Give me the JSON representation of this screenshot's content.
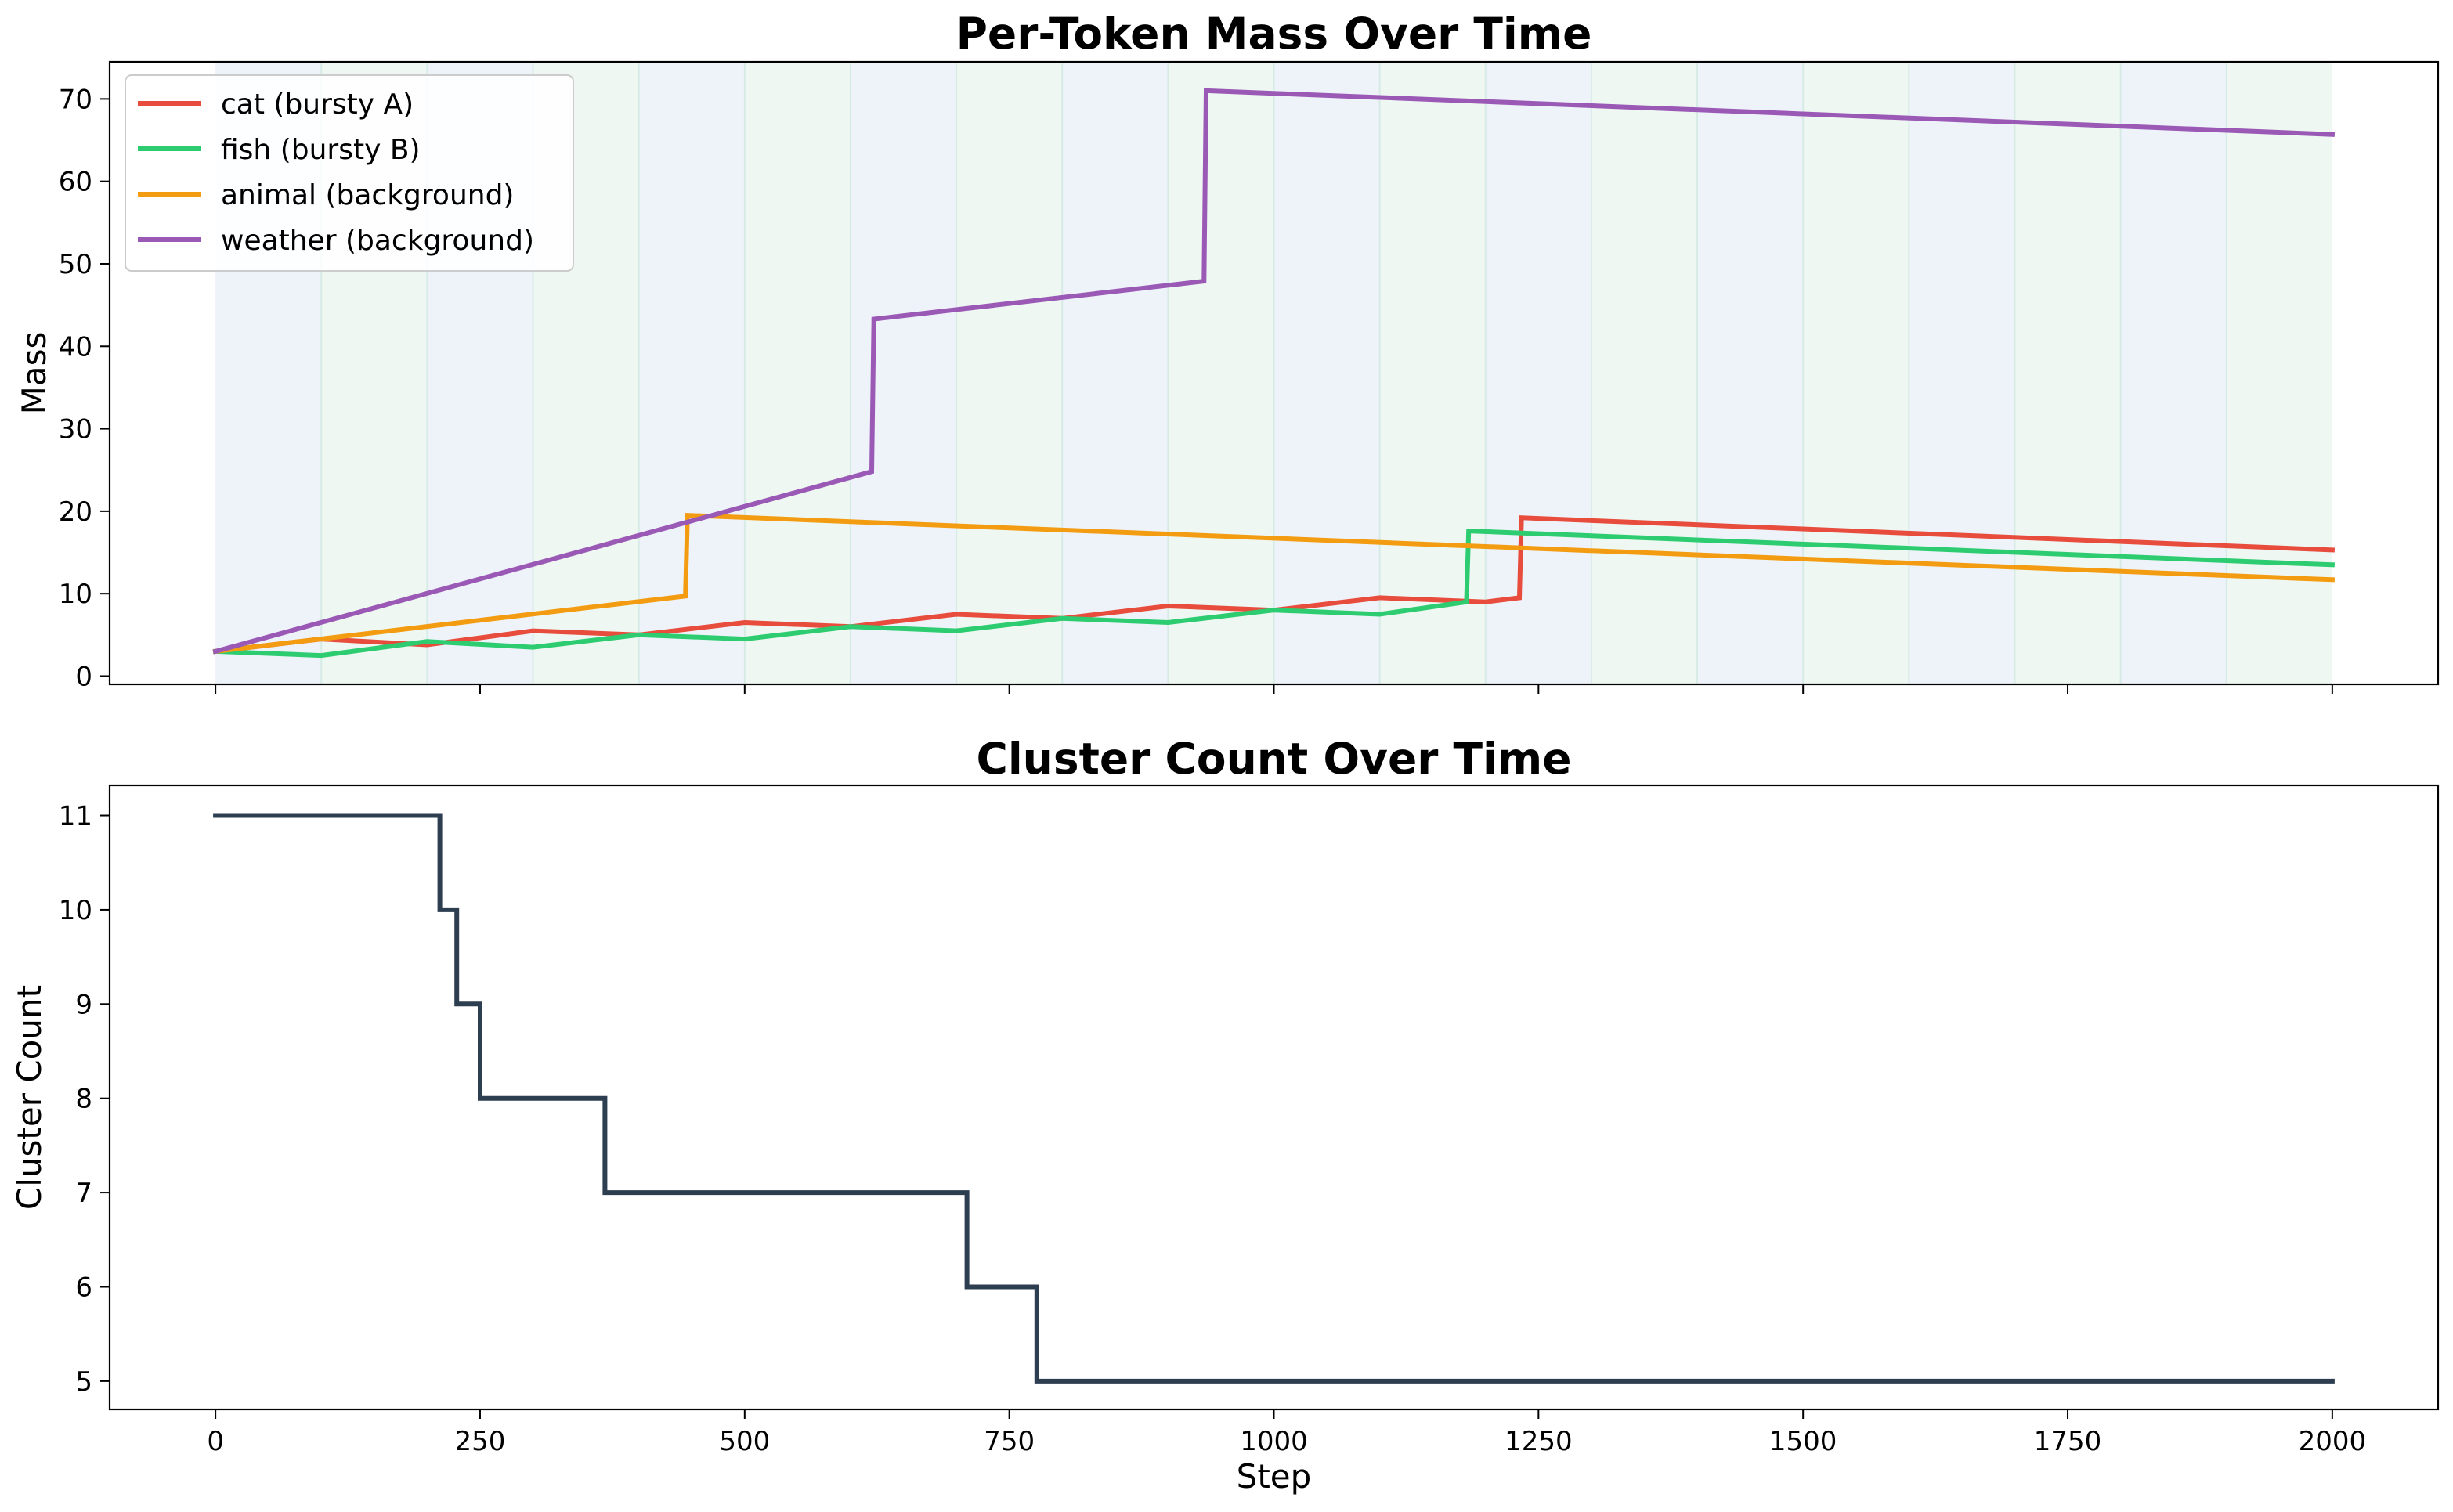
{
  "chart_data": [
    {
      "type": "line",
      "title": "Per-Token Mass Over Time",
      "xlabel": "",
      "ylabel": "Mass",
      "xlim": [
        -100,
        2100
      ],
      "ylim": [
        -1,
        74.5
      ],
      "yticks": [
        0,
        10,
        20,
        30,
        40,
        50,
        60,
        70
      ],
      "xticks": [
        0,
        250,
        500,
        750,
        1000,
        1250,
        1500,
        1750,
        2000
      ],
      "show_xtick_labels": false,
      "grid": false,
      "legend_position": "top-left",
      "background_bands": {
        "interval": 100,
        "from": 0,
        "to": 2000,
        "colors": [
          "#eef3fa",
          "#eef7f1"
        ],
        "divider_color": "#d7ebe6"
      },
      "series": [
        {
          "name": "cat (bursty A)",
          "color": "#e74c3c",
          "points": [
            [
              0,
              3
            ],
            [
              100,
              4.5
            ],
            [
              200,
              3.8
            ],
            [
              300,
              5.5
            ],
            [
              400,
              5
            ],
            [
              500,
              6.5
            ],
            [
              600,
              6
            ],
            [
              700,
              7.5
            ],
            [
              800,
              7
            ],
            [
              900,
              8.5
            ],
            [
              1000,
              8
            ],
            [
              1100,
              9.5
            ],
            [
              1200,
              9
            ],
            [
              1232,
              9.5
            ],
            [
              1234,
              19.2
            ],
            [
              2000,
              15.3
            ]
          ]
        },
        {
          "name": "fish (bursty B)",
          "color": "#2ecc71",
          "points": [
            [
              0,
              3
            ],
            [
              100,
              2.5
            ],
            [
              200,
              4.2
            ],
            [
              300,
              3.5
            ],
            [
              400,
              5
            ],
            [
              500,
              4.5
            ],
            [
              600,
              6
            ],
            [
              700,
              5.5
            ],
            [
              800,
              7
            ],
            [
              900,
              6.5
            ],
            [
              1000,
              8
            ],
            [
              1100,
              7.5
            ],
            [
              1182,
              9
            ],
            [
              1184,
              17.6
            ],
            [
              2000,
              13.5
            ]
          ]
        },
        {
          "name": "animal (background)",
          "color": "#f39c12",
          "points": [
            [
              0,
              3
            ],
            [
              444,
              9.7
            ],
            [
              446,
              19.5
            ],
            [
              2000,
              11.7
            ]
          ]
        },
        {
          "name": "weather (background)",
          "color": "#9b59b6",
          "points": [
            [
              0,
              3
            ],
            [
              620,
              24.8
            ],
            [
              622,
              43.3
            ],
            [
              934,
              47.9
            ],
            [
              936,
              71
            ],
            [
              2000,
              65.7
            ]
          ]
        }
      ]
    },
    {
      "type": "line",
      "title": "Cluster Count Over Time",
      "xlabel": "Step",
      "ylabel": "Cluster Count",
      "xlim": [
        -100,
        2100
      ],
      "ylim": [
        4.7,
        11.32
      ],
      "yticks": [
        5,
        6,
        7,
        8,
        9,
        10,
        11
      ],
      "xticks": [
        0,
        250,
        500,
        750,
        1000,
        1250,
        1500,
        1750,
        2000
      ],
      "show_xtick_labels": true,
      "grid": false,
      "series": [
        {
          "color": "#2c3e50",
          "step": true,
          "points": [
            [
              0,
              11
            ],
            [
              212,
              10
            ],
            [
              228,
              9
            ],
            [
              250,
              8
            ],
            [
              368,
              7
            ],
            [
              710,
              6
            ],
            [
              776,
              5
            ],
            [
              2000,
              5
            ]
          ]
        }
      ]
    }
  ]
}
